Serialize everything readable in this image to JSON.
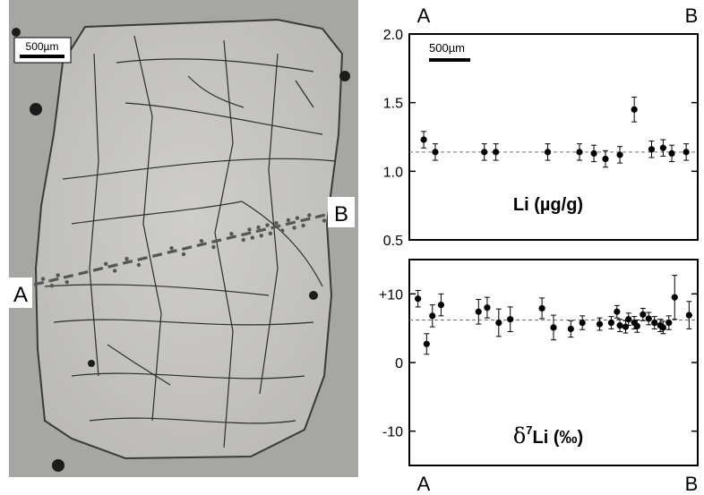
{
  "photo": {
    "scale_label": "500µm",
    "point_a": "A",
    "point_b": "B"
  },
  "plot_top_labels": {
    "left": "A",
    "right": "B"
  },
  "plot_bottom_labels": {
    "left": "A",
    "right": "B"
  },
  "colors": {
    "rock": "#c9c8c4",
    "matrix": "#a9a9a6",
    "crack": "#2a2a2a",
    "traverse": "#555555"
  },
  "chart_data": [
    {
      "type": "scatter",
      "title": "",
      "panel_label": "Li (µg/g)",
      "scale_label": "500µm",
      "xlabel": "",
      "ylabel": "",
      "xlim": [
        0,
        100
      ],
      "ylim": [
        0.5,
        2.0
      ],
      "yticks": [
        0.5,
        1.0,
        1.5,
        2.0
      ],
      "ytick_labels": [
        "0.5",
        "1.0",
        "1.5",
        "2.0"
      ],
      "reference_line": 1.14,
      "grid": false,
      "points": [
        {
          "x": 5,
          "y": 1.23,
          "err": 0.06
        },
        {
          "x": 9,
          "y": 1.14,
          "err": 0.06
        },
        {
          "x": 26,
          "y": 1.14,
          "err": 0.06
        },
        {
          "x": 30,
          "y": 1.14,
          "err": 0.06
        },
        {
          "x": 48,
          "y": 1.14,
          "err": 0.06
        },
        {
          "x": 59,
          "y": 1.14,
          "err": 0.06
        },
        {
          "x": 64,
          "y": 1.13,
          "err": 0.06
        },
        {
          "x": 68,
          "y": 1.09,
          "err": 0.06
        },
        {
          "x": 73,
          "y": 1.12,
          "err": 0.06
        },
        {
          "x": 78,
          "y": 1.45,
          "err": 0.09
        },
        {
          "x": 84,
          "y": 1.16,
          "err": 0.06
        },
        {
          "x": 88,
          "y": 1.17,
          "err": 0.06
        },
        {
          "x": 91,
          "y": 1.13,
          "err": 0.06
        },
        {
          "x": 96,
          "y": 1.14,
          "err": 0.06
        }
      ]
    },
    {
      "type": "scatter",
      "title": "",
      "panel_label_prefix": "δ",
      "panel_label_superscript": "7",
      "panel_label_suffix": "Li (‰)",
      "xlabel": "",
      "ylabel": "",
      "xlim": [
        0,
        100
      ],
      "ylim": [
        -15,
        15
      ],
      "yticks": [
        -10,
        0,
        10
      ],
      "ytick_labels": [
        "-10",
        "0",
        "+10"
      ],
      "reference_line": 6.2,
      "grid": false,
      "points": [
        {
          "x": 3,
          "y": 9.3,
          "err": 1.2
        },
        {
          "x": 6,
          "y": 2.7,
          "err": 1.5
        },
        {
          "x": 8,
          "y": 6.8,
          "err": 1.6
        },
        {
          "x": 11,
          "y": 8.4,
          "err": 1.6
        },
        {
          "x": 24,
          "y": 7.4,
          "err": 1.8
        },
        {
          "x": 27,
          "y": 8.0,
          "err": 1.5
        },
        {
          "x": 31,
          "y": 5.8,
          "err": 2.0
        },
        {
          "x": 35,
          "y": 6.3,
          "err": 1.8
        },
        {
          "x": 46,
          "y": 7.9,
          "err": 1.5
        },
        {
          "x": 50,
          "y": 5.1,
          "err": 1.8
        },
        {
          "x": 56,
          "y": 4.9,
          "err": 1.2
        },
        {
          "x": 60,
          "y": 5.8,
          "err": 1.0
        },
        {
          "x": 66,
          "y": 5.6,
          "err": 0.9
        },
        {
          "x": 70,
          "y": 5.8,
          "err": 0.9
        },
        {
          "x": 72,
          "y": 7.4,
          "err": 0.9
        },
        {
          "x": 73,
          "y": 5.4,
          "err": 0.9
        },
        {
          "x": 75,
          "y": 5.2,
          "err": 0.9
        },
        {
          "x": 76,
          "y": 6.3,
          "err": 0.9
        },
        {
          "x": 78,
          "y": 5.8,
          "err": 0.9
        },
        {
          "x": 79,
          "y": 5.3,
          "err": 0.9
        },
        {
          "x": 81,
          "y": 7.0,
          "err": 0.9
        },
        {
          "x": 83,
          "y": 6.4,
          "err": 0.9
        },
        {
          "x": 85,
          "y": 5.8,
          "err": 0.9
        },
        {
          "x": 87,
          "y": 5.4,
          "err": 0.9
        },
        {
          "x": 88,
          "y": 5.1,
          "err": 0.9
        },
        {
          "x": 90,
          "y": 5.8,
          "err": 1.0
        },
        {
          "x": 92,
          "y": 9.5,
          "err": 3.2
        },
        {
          "x": 97,
          "y": 6.9,
          "err": 2.0
        }
      ]
    }
  ]
}
